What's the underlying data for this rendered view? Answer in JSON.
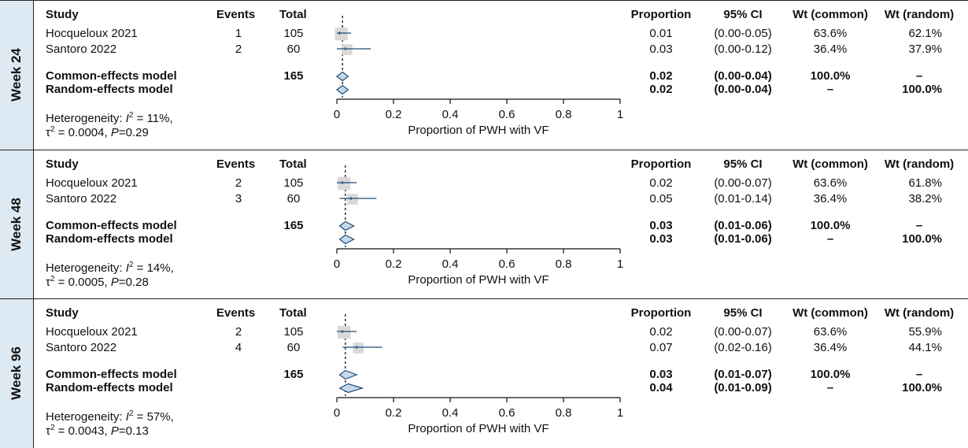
{
  "columns": {
    "study": "Study",
    "events": "Events",
    "total": "Total",
    "proportion": "Proportion",
    "ci": "95% CI",
    "wt_common": "Wt (common)",
    "wt_random": "Wt (random)"
  },
  "x_axis_label": "Proportion of PWH with VF",
  "colors": {
    "side_band": "#dde9f3",
    "box_fill": "#d9d9d9",
    "ci_line": "#1f4e79",
    "diamond_fill": "#c6d9ea",
    "diamond_stroke": "#1f4e79"
  },
  "chart_data": {
    "type": "forest",
    "xlim": [
      0,
      1
    ],
    "ticks": [
      "0",
      "0.2",
      "0.4",
      "0.6",
      "0.8",
      "1"
    ],
    "tick_values": [
      0,
      0.2,
      0.4,
      0.6,
      0.8,
      1
    ],
    "panels": [
      {
        "label": "Week 24",
        "studies": [
          {
            "name": "Hocqueloux 2021",
            "events": "1",
            "total": "105",
            "prop": "0.01",
            "ci": "(0.00-0.05)",
            "wt_common": "63.6%",
            "wt_random": "62.1%",
            "est": 0.01,
            "lo": 0.0,
            "hi": 0.05
          },
          {
            "name": "Santoro 2022",
            "events": "2",
            "total": "60",
            "prop": "0.03",
            "ci": "(0.00-0.12)",
            "wt_common": "36.4%",
            "wt_random": "37.9%",
            "est": 0.03,
            "lo": 0.0,
            "hi": 0.12
          }
        ],
        "common": {
          "name": "Common-effects model",
          "total": "165",
          "prop": "0.02",
          "ci": "(0.00-0.04)",
          "wt_common": "100.0%",
          "wt_random": "–",
          "est": 0.02,
          "lo": 0.0,
          "hi": 0.04
        },
        "random": {
          "name": "Random-effects model",
          "prop": "0.02",
          "ci": "(0.00-0.04)",
          "wt_common": "–",
          "wt_random": "100.0%",
          "est": 0.02,
          "lo": 0.0,
          "hi": 0.04
        },
        "heterogeneity": {
          "prefix": "Heterogeneity: ",
          "i2": "11%",
          "tau2": "0.0004",
          "p": "0.29"
        }
      },
      {
        "label": "Week 48",
        "studies": [
          {
            "name": "Hocqueloux 2021",
            "events": "2",
            "total": "105",
            "prop": "0.02",
            "ci": "(0.00-0.07)",
            "wt_common": "63.6%",
            "wt_random": "61.8%",
            "est": 0.02,
            "lo": 0.0,
            "hi": 0.07
          },
          {
            "name": "Santoro 2022",
            "events": "3",
            "total": "60",
            "prop": "0.05",
            "ci": "(0.01-0.14)",
            "wt_common": "36.4%",
            "wt_random": "38.2%",
            "est": 0.05,
            "lo": 0.01,
            "hi": 0.14
          }
        ],
        "common": {
          "name": "Common-effects model",
          "total": "165",
          "prop": "0.03",
          "ci": "(0.01-0.06)",
          "wt_common": "100.0%",
          "wt_random": "–",
          "est": 0.03,
          "lo": 0.01,
          "hi": 0.06
        },
        "random": {
          "name": "Random-effects model",
          "prop": "0.03",
          "ci": "(0.01-0.06)",
          "wt_common": "–",
          "wt_random": "100.0%",
          "est": 0.03,
          "lo": 0.01,
          "hi": 0.06
        },
        "heterogeneity": {
          "prefix": "Heterogeneity: ",
          "i2": "14%",
          "tau2": "0.0005",
          "p": "0.28"
        }
      },
      {
        "label": "Week 96",
        "studies": [
          {
            "name": "Hocqueloux 2021",
            "events": "2",
            "total": "105",
            "prop": "0.02",
            "ci": "(0.00-0.07)",
            "wt_common": "63.6%",
            "wt_random": "55.9%",
            "est": 0.02,
            "lo": 0.0,
            "hi": 0.07
          },
          {
            "name": "Santoro 2022",
            "events": "4",
            "total": "60",
            "prop": "0.07",
            "ci": "(0.02-0.16)",
            "wt_common": "36.4%",
            "wt_random": "44.1%",
            "est": 0.07,
            "lo": 0.02,
            "hi": 0.16
          }
        ],
        "common": {
          "name": "Common-effects model",
          "total": "165",
          "prop": "0.03",
          "ci": "(0.01-0.07)",
          "wt_common": "100.0%",
          "wt_random": "–",
          "est": 0.03,
          "lo": 0.01,
          "hi": 0.07
        },
        "random": {
          "name": "Random-effects model",
          "prop": "0.04",
          "ci": "(0.01-0.09)",
          "wt_common": "–",
          "wt_random": "100.0%",
          "est": 0.04,
          "lo": 0.01,
          "hi": 0.09
        },
        "heterogeneity": {
          "prefix": "Heterogeneity: ",
          "i2": "57%",
          "tau2": "0.0043",
          "p": "0.13"
        }
      }
    ]
  }
}
